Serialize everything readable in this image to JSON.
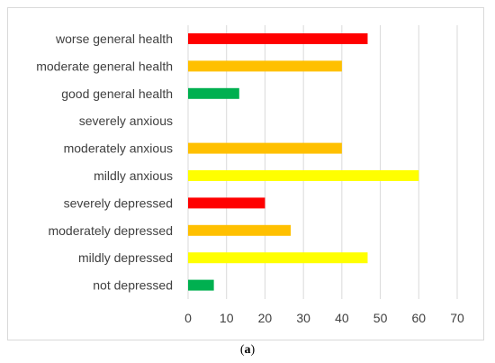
{
  "chart_data": {
    "type": "bar",
    "orientation": "horizontal",
    "categories": [
      "worse general health",
      "moderate general health",
      "good general health",
      "severely anxious",
      "moderately anxious",
      "mildly anxious",
      "severely depressed",
      "moderately depressed",
      "mildly depressed",
      "not depressed"
    ],
    "values": [
      46.7,
      40,
      13.3,
      0,
      40,
      60,
      20,
      26.7,
      46.7,
      6.7
    ],
    "colors": [
      "#ff0000",
      "#ffc000",
      "#00b050",
      "#ffc000",
      "#ffc000",
      "#ffff00",
      "#ff0000",
      "#ffc000",
      "#ffff00",
      "#00b050"
    ],
    "xlim": [
      0,
      70
    ],
    "xticks": [
      0,
      10,
      20,
      30,
      40,
      50,
      60,
      70
    ],
    "grid": true,
    "legend": "none",
    "title": "",
    "xlabel": "",
    "ylabel": ""
  },
  "caption": {
    "open": "(",
    "letter": "a",
    "close": ")"
  }
}
